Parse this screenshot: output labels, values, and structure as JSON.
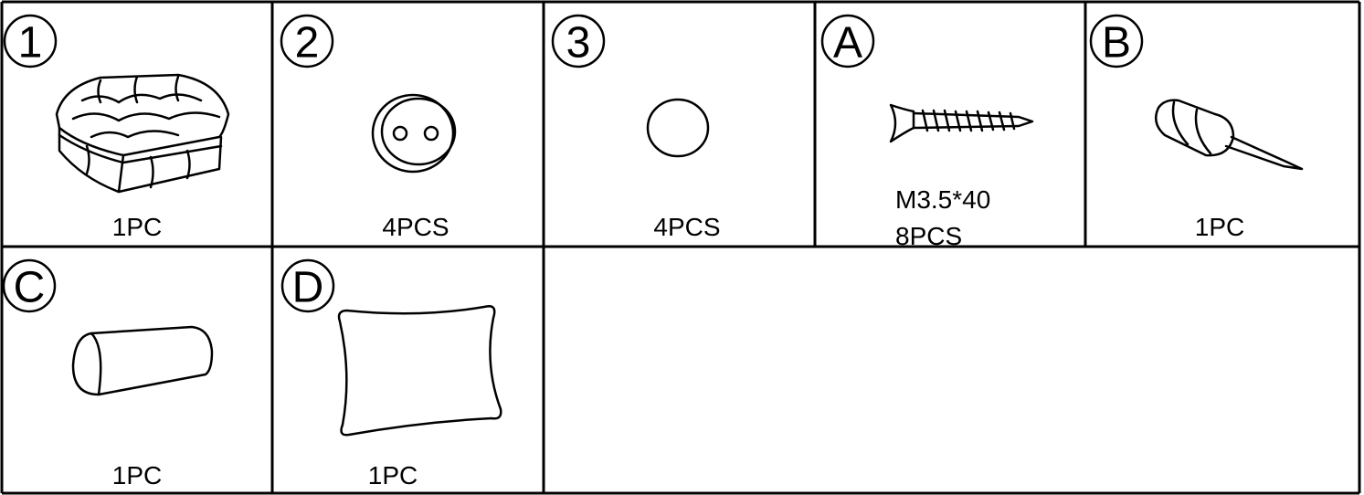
{
  "parts": [
    {
      "id": "1",
      "qty": "1PC"
    },
    {
      "id": "2",
      "qty": "4PCS"
    },
    {
      "id": "3",
      "qty": "4PCS"
    },
    {
      "id": "A",
      "spec": "M3.5*40",
      "qty": "8PCS"
    },
    {
      "id": "B",
      "qty": "1PC"
    },
    {
      "id": "C",
      "qty": "1PC"
    },
    {
      "id": "D",
      "qty": "1PC"
    }
  ]
}
